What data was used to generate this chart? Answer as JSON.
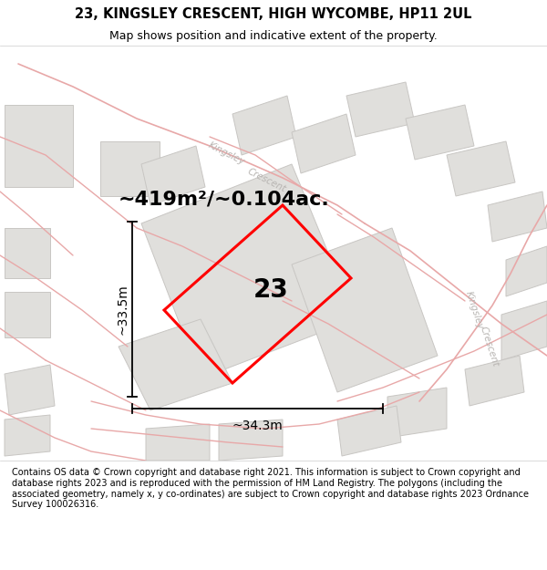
{
  "title": "23, KINGSLEY CRESCENT, HIGH WYCOMBE, HP11 2UL",
  "subtitle": "Map shows position and indicative extent of the property.",
  "area_text": "~419m²/~0.104ac.",
  "number_label": "23",
  "width_label": "~34.3m",
  "height_label": "~33.5m",
  "footer": "Contains OS data © Crown copyright and database right 2021. This information is subject to Crown copyright and database rights 2023 and is reproduced with the permission of HM Land Registry. The polygons (including the associated geometry, namely x, y co-ordinates) are subject to Crown copyright and database rights 2023 Ordnance Survey 100026316.",
  "map_bg": "#f8f7f5",
  "road_color": "#e8a8a8",
  "building_fill": "#e0dfdc",
  "building_edge": "#c8c6c3",
  "plot_edge": "#ff0000",
  "dim_color": "#222222",
  "road_label_color": "#b8b5b2",
  "title_fontsize": 10.5,
  "subtitle_fontsize": 9,
  "area_fontsize": 16,
  "number_fontsize": 20,
  "dim_fontsize": 10,
  "road_label_fontsize": 7.5,
  "footer_fontsize": 7
}
